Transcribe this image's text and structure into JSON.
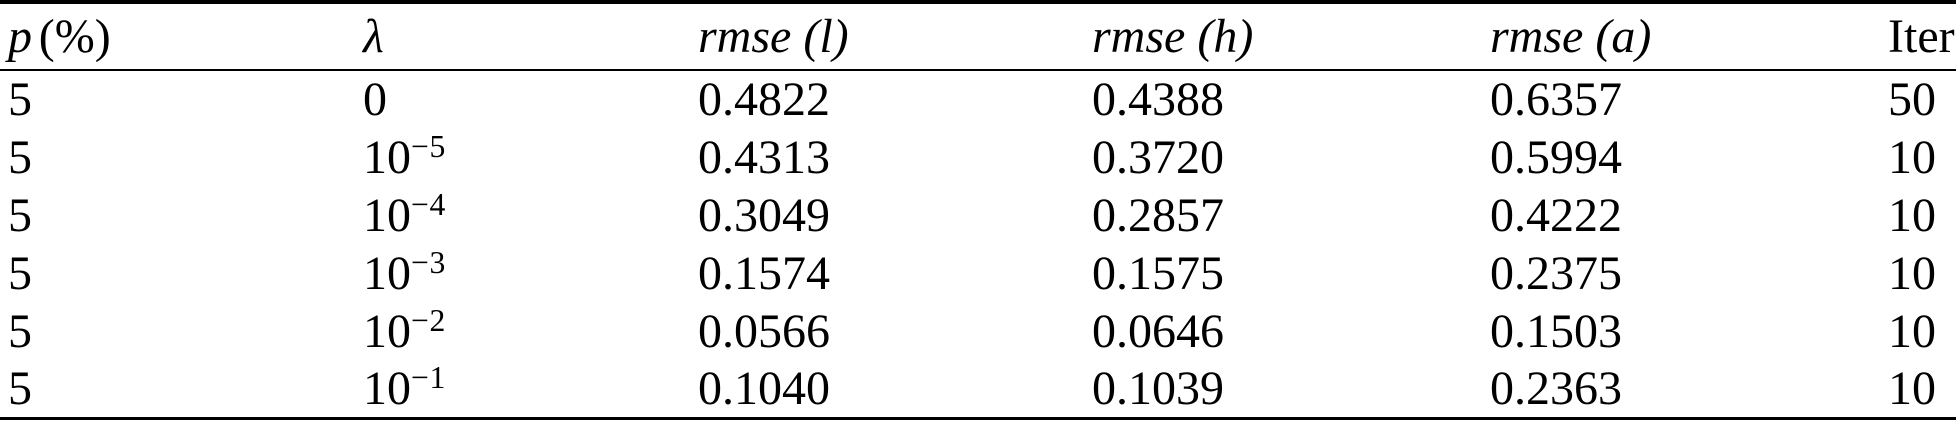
{
  "page": {
    "background": "#ffffff",
    "text_color": "#000000"
  },
  "table": {
    "headers": {
      "col1_symbol": "p",
      "col1_unit": "(%)",
      "col2_lambda": "λ",
      "col3_rmse_l": "rmse (l)",
      "col4_rmse_h": "rmse (h)",
      "col5_rmse_a": "rmse (a)",
      "col6_iter": "Iter"
    },
    "rows": [
      {
        "p": "5",
        "lambda_base": "0",
        "lambda_exp": "",
        "rmse_l": "0.4822",
        "rmse_h": "0.4388",
        "rmse_a": "0.6357",
        "iter": "50"
      },
      {
        "p": "5",
        "lambda_base": "10",
        "lambda_exp": "−5",
        "rmse_l": "0.4313",
        "rmse_h": "0.3720",
        "rmse_a": "0.5994",
        "iter": "10"
      },
      {
        "p": "5",
        "lambda_base": "10",
        "lambda_exp": "−4",
        "rmse_l": "0.3049",
        "rmse_h": "0.2857",
        "rmse_a": "0.4222",
        "iter": "10"
      },
      {
        "p": "5",
        "lambda_base": "10",
        "lambda_exp": "−3",
        "rmse_l": "0.1574",
        "rmse_h": "0.1575",
        "rmse_a": "0.2375",
        "iter": "10"
      },
      {
        "p": "5",
        "lambda_base": "10",
        "lambda_exp": "−2",
        "rmse_l": "0.0566",
        "rmse_h": "0.0646",
        "rmse_a": "0.1503",
        "iter": "10"
      },
      {
        "p": "5",
        "lambda_base": "10",
        "lambda_exp": "−1",
        "rmse_l": "0.1040",
        "rmse_h": "0.1039",
        "rmse_a": "0.2363",
        "iter": "10"
      }
    ]
  }
}
